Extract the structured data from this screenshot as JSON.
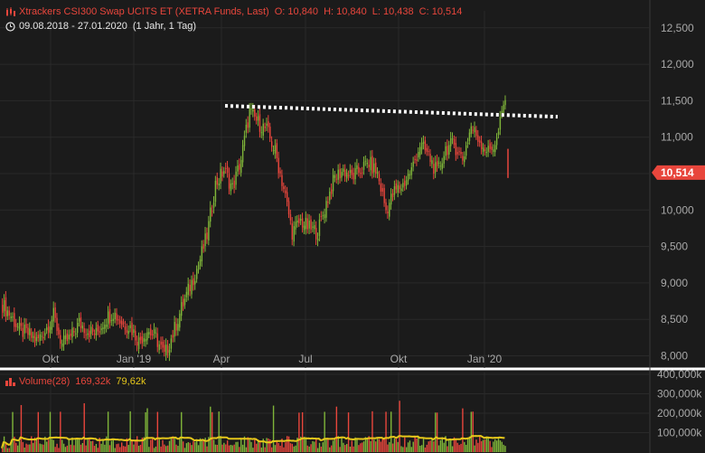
{
  "header": {
    "title": "Xtrackers CSI300 Swap UCITS ET (XETRA Funds, Last)",
    "open": "O: 10,840",
    "high": "H: 10,840",
    "low": "L: 10,438",
    "close": "C: 10,514",
    "range": "09.08.2018 - 27.01.2020",
    "period": "(1 Jahr, 1 Tag)",
    "icon_price": "candlestick-chart-icon",
    "icon_range": "clock-icon"
  },
  "volume_header": {
    "label": "Volume(28)",
    "value": "169,32k",
    "average": "79,62k",
    "icon": "bar-chart-icon"
  },
  "price_badge": "10,514",
  "colors": {
    "background": "#1b1b1b",
    "up": "#7fb539",
    "down": "#e8463c",
    "average": "#e6c71a",
    "trendline": "#ffffff",
    "grid": "#2a2a2a"
  },
  "chart_data": [
    {
      "type": "candlestick",
      "title": "Xtrackers CSI300 Swap UCITS ET (XETRA Funds, Last)",
      "x_tick_labels": [
        "Okt",
        "Jan '19",
        "Apr",
        "Jul",
        "Okt",
        "Jan '20"
      ],
      "y_tick_labels": [
        "8,000",
        "8,500",
        "9,000",
        "9,500",
        "10,000",
        "10,500",
        "11,000",
        "11,500",
        "12,000",
        "12,500"
      ],
      "ylim": [
        7.95,
        12.75
      ],
      "last_value": 10.514,
      "grid": true,
      "weekly_closes": [
        8.7,
        8.55,
        8.35,
        8.3,
        8.2,
        8.35,
        8.55,
        8.15,
        8.25,
        8.45,
        8.35,
        8.3,
        8.5,
        8.6,
        8.45,
        8.4,
        8.2,
        8.35,
        8.25,
        8.0,
        8.3,
        8.65,
        8.95,
        9.25,
        9.65,
        10.35,
        10.55,
        10.3,
        10.7,
        11.35,
        11.2,
        11.1,
        10.8,
        10.3,
        9.7,
        9.85,
        9.75,
        9.7,
        10.1,
        10.45,
        10.55,
        10.45,
        10.55,
        10.65,
        10.5,
        10.0,
        10.25,
        10.35,
        10.55,
        10.9,
        10.75,
        10.5,
        10.85,
        10.9,
        10.7,
        11.15,
        10.95,
        10.8,
        10.95,
        11.55,
        11.85,
        11.95,
        11.35,
        10.5
      ],
      "trendline": {
        "start": 11.43,
        "end": 11.28
      }
    },
    {
      "type": "bar",
      "title": "Volume(28)",
      "y_tick_labels": [
        "100,000k",
        "200,000k",
        "300,000k",
        "400,000k"
      ],
      "ylim": [
        0,
        415
      ],
      "series": [
        {
          "name": "Volume(28)",
          "last_value": 169.32
        },
        {
          "name": "79,62k",
          "kind": "moving-average",
          "last_value": 79.62
        }
      ]
    }
  ]
}
